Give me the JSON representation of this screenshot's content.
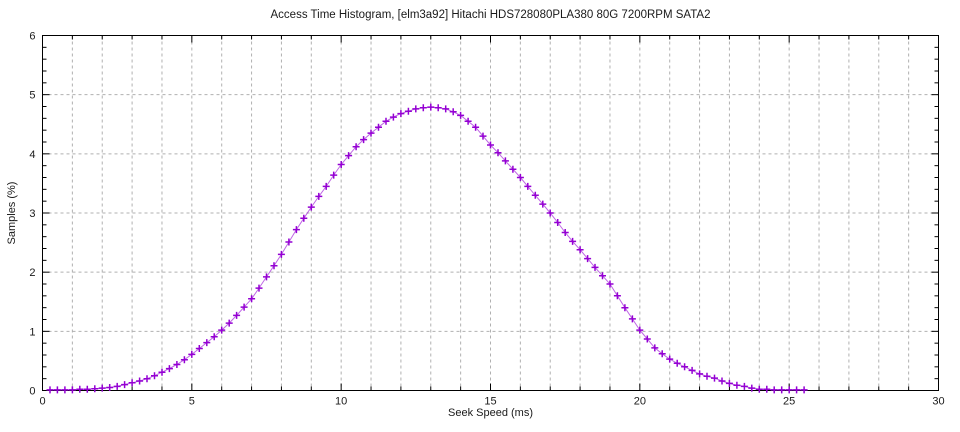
{
  "page": {
    "background": "#ffffff"
  },
  "chart_data": {
    "type": "line",
    "title": "Access Time Histogram, [elm3a92] Hitachi HDS728080PLA380 80G 7200RPM SATA2",
    "xlabel": "Seek Speed (ms)",
    "ylabel": "Samples (%)",
    "xlim": [
      0,
      30
    ],
    "ylim": [
      0,
      6
    ],
    "xticks": [
      0,
      5,
      10,
      15,
      20,
      25,
      30
    ],
    "yticks": [
      0,
      1,
      2,
      3,
      4,
      5,
      6
    ],
    "x_minor_step": 1,
    "y_minor_step": 0.2,
    "grid": {
      "on": true,
      "vertical_step": 1,
      "horizontal_step": 1,
      "style": "dashed",
      "color": "#b0b0b0"
    },
    "legend_position": "none",
    "axis_color": "#000000",
    "series": [
      {
        "name": "seek-time-samples",
        "marker": "plus",
        "color": "#9400d3",
        "x_start": 0.25,
        "x_step": 0.25,
        "values": [
          0.01,
          0.01,
          0.01,
          0.01,
          0.02,
          0.02,
          0.03,
          0.04,
          0.05,
          0.07,
          0.1,
          0.13,
          0.16,
          0.2,
          0.25,
          0.31,
          0.37,
          0.44,
          0.52,
          0.61,
          0.71,
          0.81,
          0.91,
          1.02,
          1.14,
          1.27,
          1.41,
          1.55,
          1.73,
          1.92,
          2.11,
          2.3,
          2.51,
          2.72,
          2.91,
          3.1,
          3.28,
          3.45,
          3.64,
          3.82,
          3.97,
          4.12,
          4.24,
          4.35,
          4.45,
          4.55,
          4.62,
          4.68,
          4.72,
          4.76,
          4.78,
          4.79,
          4.78,
          4.76,
          4.71,
          4.65,
          4.55,
          4.45,
          4.3,
          4.15,
          4.02,
          3.88,
          3.74,
          3.6,
          3.45,
          3.3,
          3.15,
          3.0,
          2.84,
          2.67,
          2.52,
          2.38,
          2.23,
          2.08,
          1.94,
          1.8,
          1.6,
          1.4,
          1.21,
          1.02,
          0.87,
          0.72,
          0.62,
          0.53,
          0.46,
          0.4,
          0.34,
          0.28,
          0.24,
          0.21,
          0.16,
          0.12,
          0.09,
          0.07,
          0.04,
          0.02,
          0.02,
          0.01,
          0.01,
          0.01,
          0.01,
          0.01
        ]
      }
    ]
  }
}
